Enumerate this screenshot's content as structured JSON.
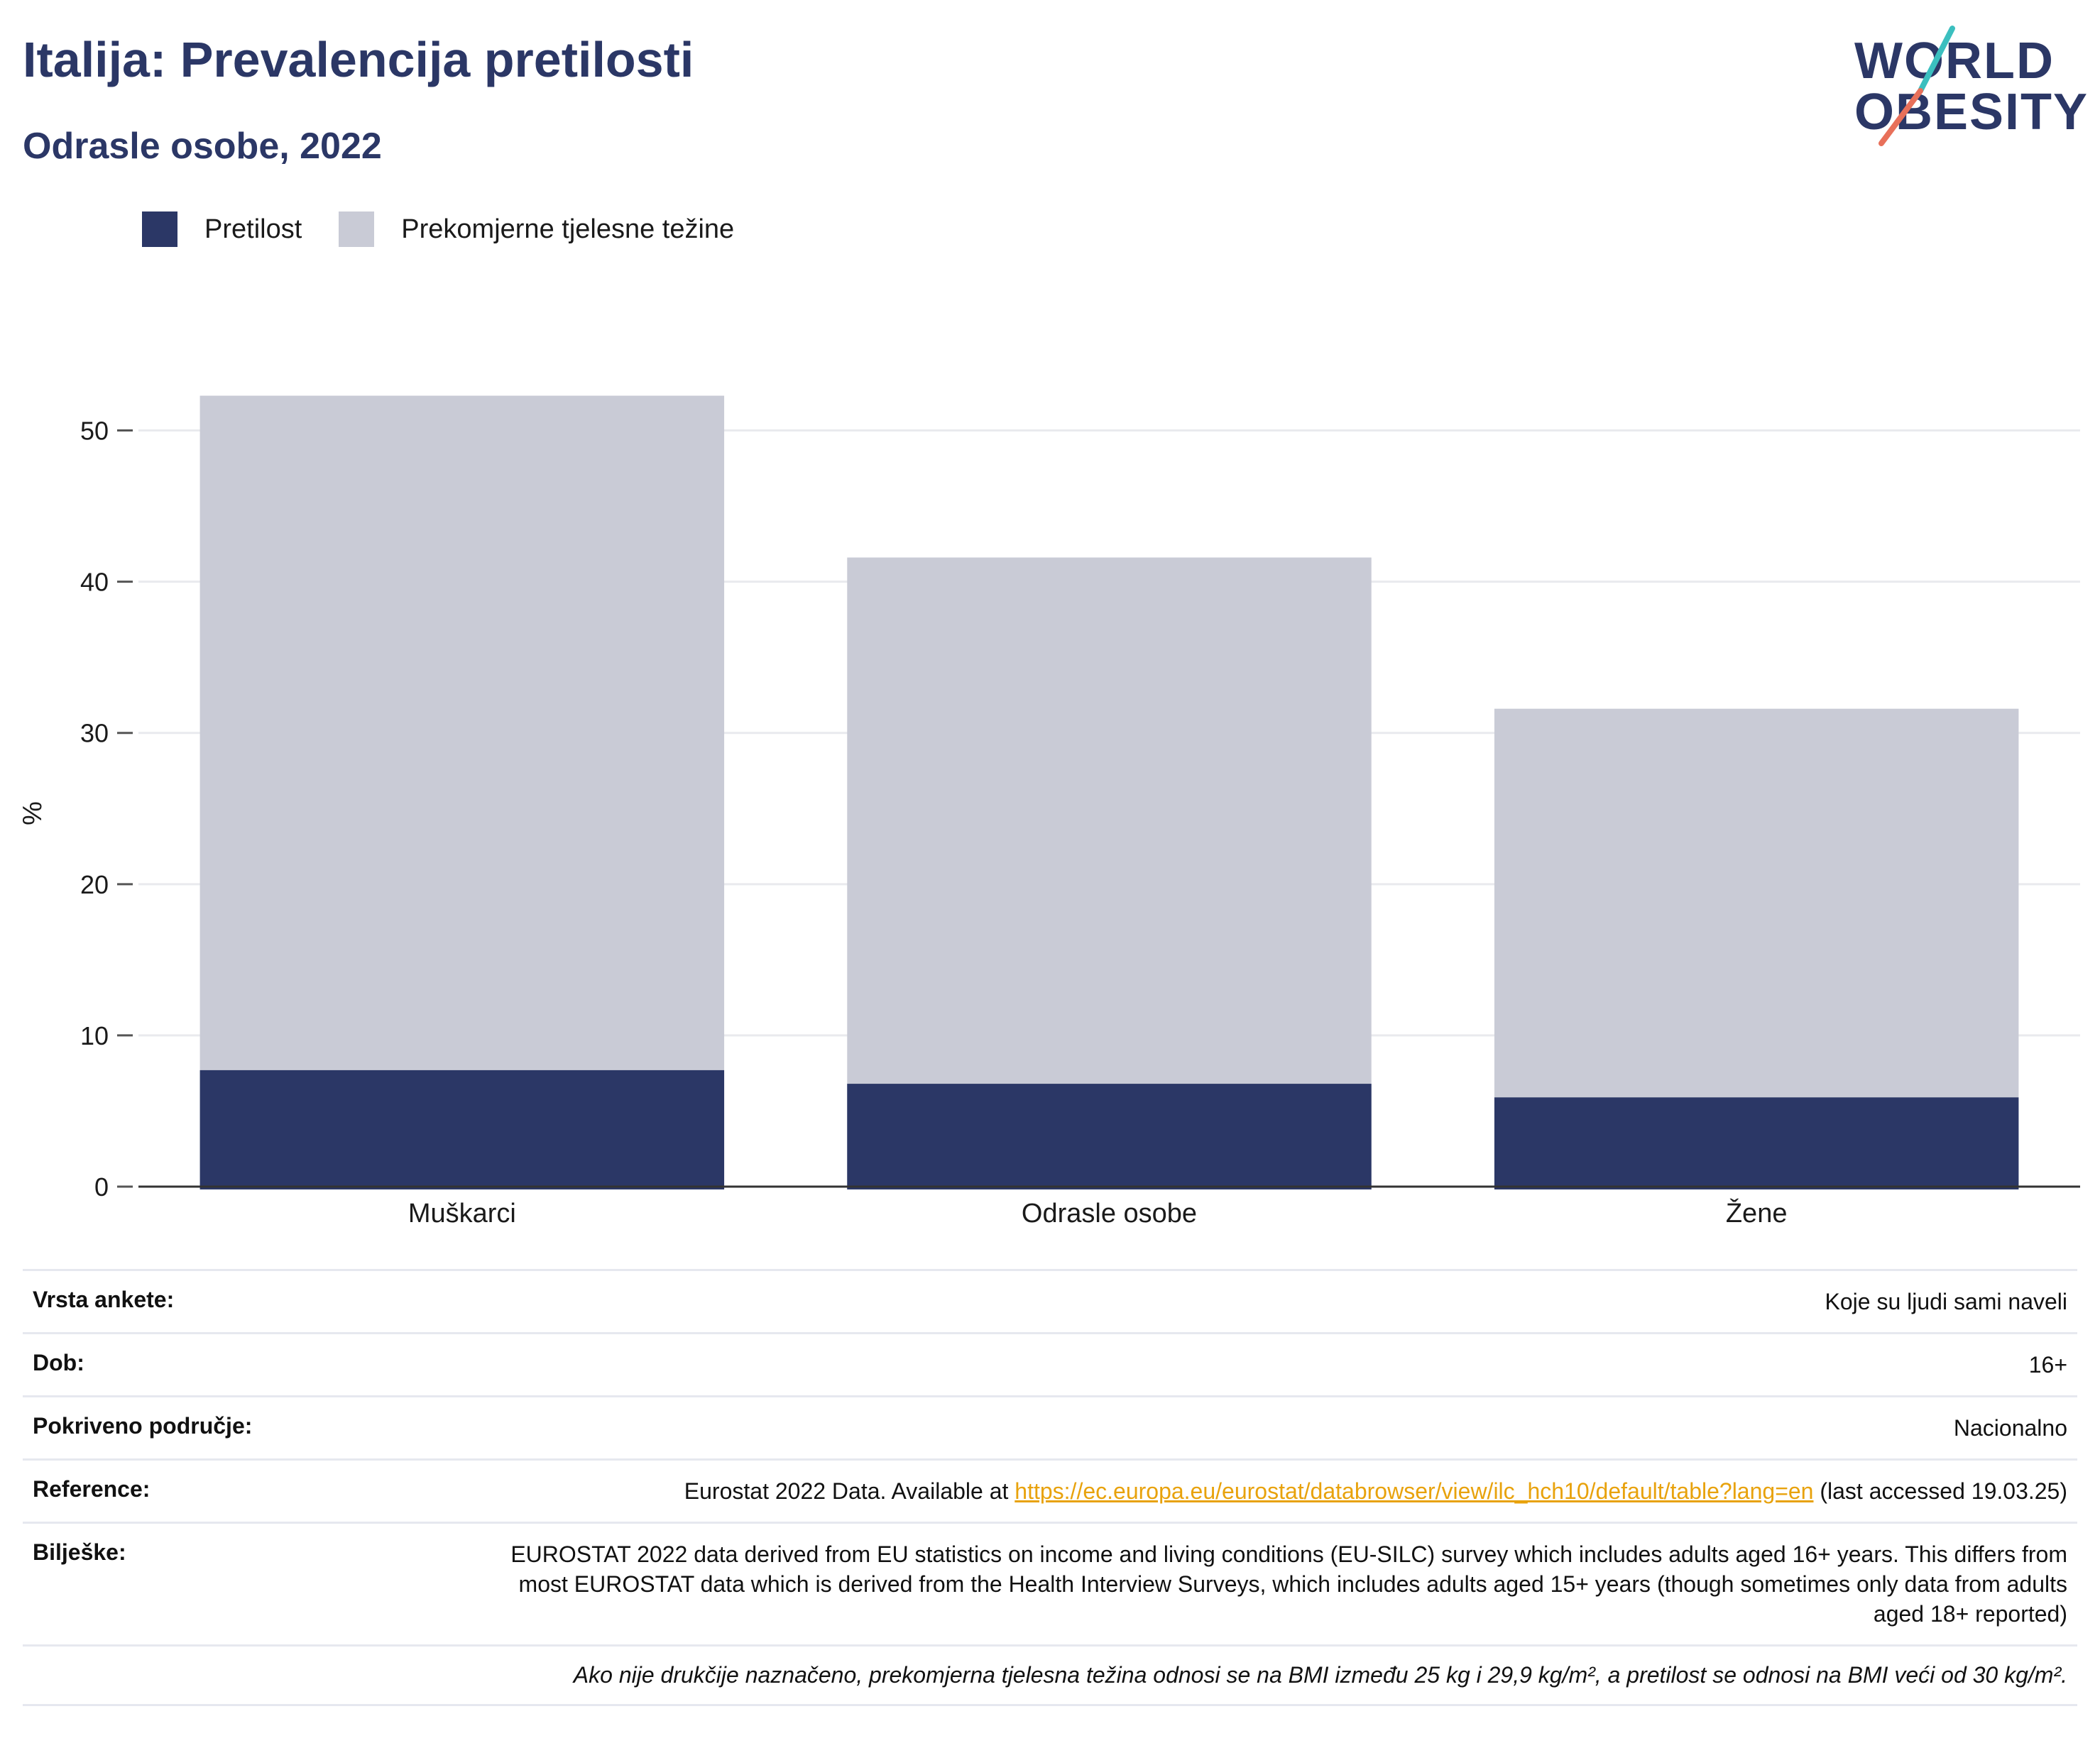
{
  "header": {
    "title": "Italija: Prevalencija pretilosti",
    "subtitle": "Odrasle osobe, 2022"
  },
  "logo": {
    "line1": "WORLD",
    "line2": "OBESITY",
    "color": "#2b3766",
    "accent_teal": "#3bbfbf",
    "accent_coral": "#e8705a"
  },
  "legend": [
    {
      "label": "Pretilost",
      "color": "#2b3766"
    },
    {
      "label": "Prekomjerne tjelesne težine",
      "color": "#c9cbd6"
    }
  ],
  "chart_data": {
    "type": "bar",
    "stacked": false,
    "overlay": true,
    "categories": [
      "Muškarci",
      "Odrasle osobe",
      "Žene"
    ],
    "series": [
      {
        "name": "Prekomjerne tjelesne težine",
        "values": [
          52.3,
          41.6,
          31.6
        ],
        "color": "#c9cbd6"
      },
      {
        "name": "Pretilost",
        "values": [
          7.7,
          6.8,
          5.9
        ],
        "color": "#2b3766"
      }
    ],
    "ylabel": "%",
    "ylim": [
      0,
      55
    ],
    "yticks": [
      0,
      10,
      20,
      30,
      40,
      50
    ],
    "grid": true
  },
  "info": {
    "rows": [
      {
        "label": "Vrsta ankete:",
        "value": "Koje su ljudi sami naveli"
      },
      {
        "label": "Dob:",
        "value": "16+"
      },
      {
        "label": "Pokriveno područje:",
        "value": "Nacionalno"
      }
    ],
    "reference": {
      "label": "Reference:",
      "prefix": "Eurostat 2022 Data. Available at ",
      "link": "https://ec.europa.eu/eurostat/databrowser/view/ilc_hch10/default/table?lang=en",
      "suffix": " (last accessed 19.03.25)"
    },
    "notes": {
      "label": "Bilješke:",
      "value": "EUROSTAT 2022 data derived from EU statistics on income and living conditions (EU-SILC) survey which includes adults aged 16+ years. This differs from most EUROSTAT data which is derived from the Health Interview Surveys, which includes adults aged 15+ years (though sometimes only data from adults aged 18+ reported)"
    },
    "footnote": "Ako nije drukčije naznačeno, prekomjerna tjelesna težina odnosi se na BMI između 25 kg i 29,9 kg/m², a pretilost se odnosi na BMI veći od 30 kg/m²."
  }
}
